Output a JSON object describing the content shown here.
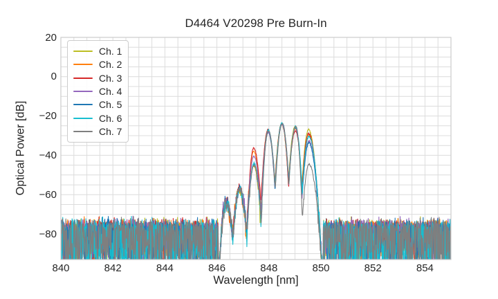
{
  "chart_data": {
    "type": "line",
    "title": "D4464 V20298 Pre Burn-In",
    "xlabel": "Wavelength [nm]",
    "ylabel": "Optical Power [dB]",
    "xlim": [
      840,
      855
    ],
    "ylim": [
      -93,
      20
    ],
    "x_tick_values": [
      840,
      842,
      844,
      846,
      848,
      850,
      852,
      854
    ],
    "x_tick_labels": [
      "840",
      "842",
      "844",
      "846",
      "848",
      "850",
      "852",
      "854"
    ],
    "y_tick_values": [
      20,
      0,
      -20,
      -40,
      -60,
      -80
    ],
    "y_tick_labels": [
      "20",
      "0",
      "−20",
      "−40",
      "−60",
      "−80"
    ],
    "grid": {
      "x_minor_step_nm": 0.5,
      "y_minor_step_db": 5,
      "color": "#dcdcdc",
      "spine_color": "#cccccc"
    },
    "legend": {
      "position": "upper-left"
    },
    "series": [
      {
        "name": "Ch. 1",
        "color": "#bcbd22",
        "lobe_peaks_db": [
          -64.6,
          -57.3,
          -45.2,
          -27.4,
          -24.1,
          -25.3,
          -26.9
        ],
        "x_offset_nm": -0.01,
        "noise_spike_prob": 0.5,
        "noise_spike_depth_db": 18
      },
      {
        "name": "Ch. 2",
        "color": "#ff7f0e",
        "lobe_peaks_db": [
          -64.0,
          -57.0,
          -37.8,
          -26.9,
          -23.9,
          -26.3,
          -29.4
        ],
        "x_offset_nm": -0.006,
        "noise_spike_prob": 0.5,
        "noise_spike_depth_db": 18
      },
      {
        "name": "Ch. 3",
        "color": "#d62728",
        "lobe_peaks_db": [
          -63.6,
          -56.6,
          -36.1,
          -27.1,
          -23.8,
          -27.6,
          -29.0
        ],
        "x_offset_nm": -0.003,
        "noise_spike_prob": 0.5,
        "noise_spike_depth_db": 18
      },
      {
        "name": "Ch. 4",
        "color": "#9467bd",
        "lobe_peaks_db": [
          -64.1,
          -57.1,
          -40.5,
          -28.4,
          -24.3,
          -26.0,
          -32.6
        ],
        "x_offset_nm": 0.0,
        "noise_spike_prob": 0.5,
        "noise_spike_depth_db": 19
      },
      {
        "name": "Ch. 5",
        "color": "#1f77b4",
        "lobe_peaks_db": [
          -64.4,
          -57.2,
          -44.6,
          -27.7,
          -23.6,
          -25.7,
          -33.8
        ],
        "x_offset_nm": 0.003,
        "noise_spike_prob": 0.55,
        "noise_spike_depth_db": 21
      },
      {
        "name": "Ch. 6",
        "color": "#17becf",
        "lobe_peaks_db": [
          -63.9,
          -56.8,
          -44.1,
          -27.3,
          -23.5,
          -25.5,
          -30.4
        ],
        "x_offset_nm": 0.006,
        "noise_spike_prob": 0.62,
        "noise_spike_depth_db": 24
      },
      {
        "name": "Ch. 7",
        "color": "#7f7f7f",
        "lobe_peaks_db": [
          -64.2,
          -57.2,
          -44.9,
          -27.6,
          -23.9,
          -25.1,
          -44.6
        ],
        "x_offset_nm": 0.01,
        "noise_spike_prob": 0.6,
        "noise_spike_depth_db": 20
      }
    ],
    "signal_model": {
      "lobe_centers_nm": [
        846.35,
        846.87,
        847.42,
        847.97,
        848.5,
        849.02,
        849.53
      ],
      "dip_depth_below_min_peak_db": 28,
      "dip_floor_db": -80,
      "signal_range_nm": [
        846.05,
        850.08
      ],
      "edge_half_width_nm": {
        "left": 0.3,
        "right": 0.56
      }
    },
    "noise_model": {
      "mean_db": -76.0,
      "sigma_db": 1.6,
      "top_db": -70.8
    },
    "sample_step_nm": 0.012
  }
}
